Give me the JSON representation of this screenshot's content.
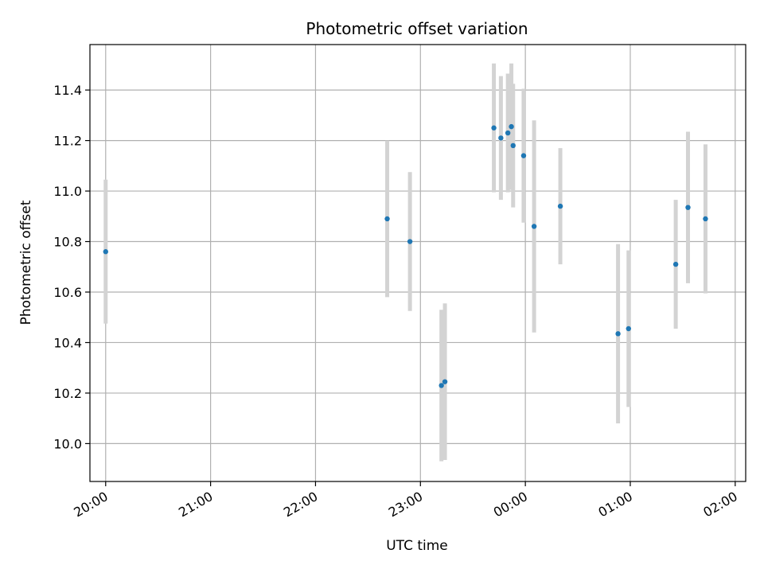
{
  "chart_data": {
    "type": "scatter",
    "title": "Photometric offset variation",
    "xlabel": "UTC time",
    "ylabel": "Photometric offset",
    "x_unit": "minutes",
    "xlim": [
      1191,
      1566
    ],
    "ylim": [
      9.85,
      11.58
    ],
    "x_ticks": [
      1200,
      1260,
      1320,
      1380,
      1440,
      1500,
      1560
    ],
    "x_tick_labels": [
      "20:00",
      "21:00",
      "22:00",
      "23:00",
      "00:00",
      "01:00",
      "02:00"
    ],
    "y_ticks": [
      10.0,
      10.2,
      10.4,
      10.6,
      10.8,
      11.0,
      11.2,
      11.4
    ],
    "y_tick_labels": [
      "10.0",
      "10.2",
      "10.4",
      "10.6",
      "10.8",
      "11.0",
      "11.2",
      "11.4"
    ],
    "grid": true,
    "marker_color": "#1f77b4",
    "errorbar_color": "#d3d3d3",
    "points": [
      {
        "t": "20:00",
        "y": 10.76,
        "err": 0.285
      },
      {
        "t": "22:41",
        "y": 10.89,
        "err": 0.31
      },
      {
        "t": "22:54",
        "y": 10.8,
        "err": 0.275
      },
      {
        "t": "23:12",
        "y": 10.23,
        "err": 0.3
      },
      {
        "t": "23:14",
        "y": 10.245,
        "err": 0.31
      },
      {
        "t": "23:42",
        "y": 11.25,
        "err": 0.255
      },
      {
        "t": "23:46",
        "y": 11.21,
        "err": 0.245
      },
      {
        "t": "23:50",
        "y": 11.23,
        "err": 0.235
      },
      {
        "t": "23:52",
        "y": 11.255,
        "err": 0.25
      },
      {
        "t": "23:53",
        "y": 11.18,
        "err": 0.245
      },
      {
        "t": "23:59",
        "y": 11.14,
        "err": 0.265
      },
      {
        "t": "00:05",
        "y": 10.86,
        "err": 0.42
      },
      {
        "t": "00:20",
        "y": 10.94,
        "err": 0.23
      },
      {
        "t": "00:53",
        "y": 10.435,
        "err": 0.355
      },
      {
        "t": "00:59",
        "y": 10.455,
        "err": 0.31
      },
      {
        "t": "01:26",
        "y": 10.71,
        "err": 0.255
      },
      {
        "t": "01:33",
        "y": 10.935,
        "err": 0.3
      },
      {
        "t": "01:43",
        "y": 10.89,
        "err": 0.295
      }
    ]
  }
}
